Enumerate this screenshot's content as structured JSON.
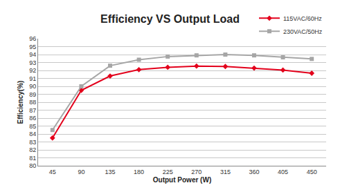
{
  "chart_data": {
    "type": "line",
    "title": "Efficiency VS Output Load",
    "x_label": "Output Power (W)",
    "y_label": "Efficiency(%)",
    "categories": [
      "45",
      "90",
      "135",
      "180",
      "225",
      "270",
      "315",
      "360",
      "405",
      "450"
    ],
    "series": [
      {
        "name": "115VAC/60Hz",
        "color": "#e3001b",
        "marker": "diamond",
        "values": [
          83.5,
          89.5,
          91.3,
          92.1,
          92.4,
          92.55,
          92.5,
          92.3,
          92.05,
          91.65
        ]
      },
      {
        "name": "230VAC/50Hz",
        "color": "#a6a6a6",
        "marker": "square",
        "values": [
          84.5,
          90.0,
          92.6,
          93.35,
          93.75,
          93.9,
          94.0,
          93.9,
          93.65,
          93.45
        ]
      }
    ],
    "ylim": [
      80,
      96
    ],
    "yticks": [
      80,
      81,
      82,
      83,
      84,
      85,
      86,
      87,
      88,
      89,
      90,
      91,
      92,
      93,
      94,
      95,
      96
    ],
    "grid": true,
    "legend": "upper right"
  }
}
